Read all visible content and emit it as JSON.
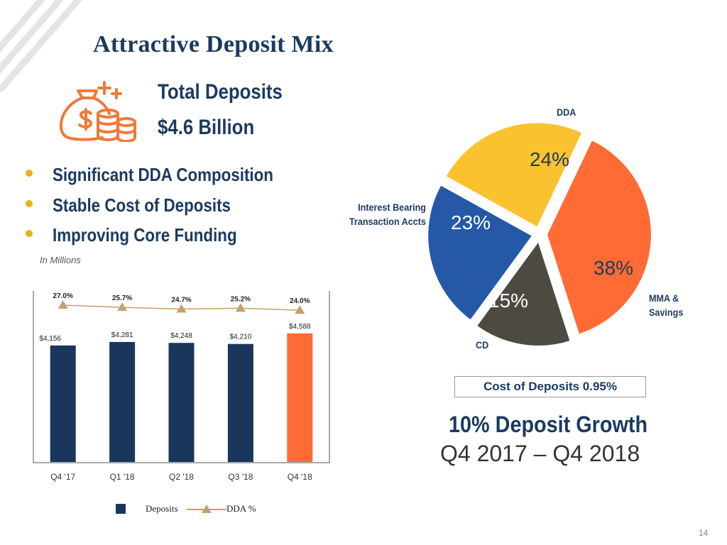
{
  "page": {
    "title": "Attractive Deposit Mix",
    "page_number": "14"
  },
  "total": {
    "title": "Total Deposits",
    "value": "$4.6 Billion"
  },
  "bullets": [
    "Significant DDA Composition",
    "Stable Cost of Deposits",
    "Improving Core Funding"
  ],
  "units_label": "In Millions",
  "legend": {
    "deposits": "Deposits",
    "dda": "DDA %"
  },
  "cost_of_deposits": "Cost of Deposits 0.95%",
  "growth": {
    "title": "10% Deposit Growth",
    "period": "Q4 2017 – Q4 2018"
  },
  "colors": {
    "navy": "#1b365d",
    "highlight": "#ff6b35",
    "line": "#c4a06a",
    "bullet": "#e6b31e",
    "dda": "#fbc230",
    "ibta": "#2558a7",
    "cd": "#4d4a42",
    "mma": "#ff6b35"
  },
  "chart_data": [
    {
      "type": "bar",
      "title": "",
      "ylabel": "In Millions",
      "categories": [
        "Q4 '17",
        "Q1 '18",
        "Q2 '18",
        "Q3 '18",
        "Q4 '18"
      ],
      "series": [
        {
          "name": "Deposits",
          "values": [
            4156,
            4281,
            4248,
            4210,
            4588
          ],
          "labels": [
            "$4,156",
            "$4,281",
            "$4,248",
            "$4,210",
            "$4,588"
          ]
        },
        {
          "name": "DDA %",
          "type": "line",
          "values": [
            27.0,
            25.7,
            24.7,
            25.2,
            24.0
          ],
          "labels": [
            "27.0%",
            "25.7%",
            "24.7%",
            "25.2%",
            "24.0%"
          ]
        }
      ],
      "highlight_index": 4,
      "legend": "bottom"
    },
    {
      "type": "pie",
      "slices": [
        {
          "name": "DDA",
          "value": 24,
          "label": "24%"
        },
        {
          "name": "MMA & Savings",
          "value": 38,
          "label": "38%"
        },
        {
          "name": "CD",
          "value": 15,
          "label": "15%"
        },
        {
          "name": "Interest Bearing Transaction Accts",
          "value": 23,
          "label": "23%"
        }
      ]
    }
  ]
}
